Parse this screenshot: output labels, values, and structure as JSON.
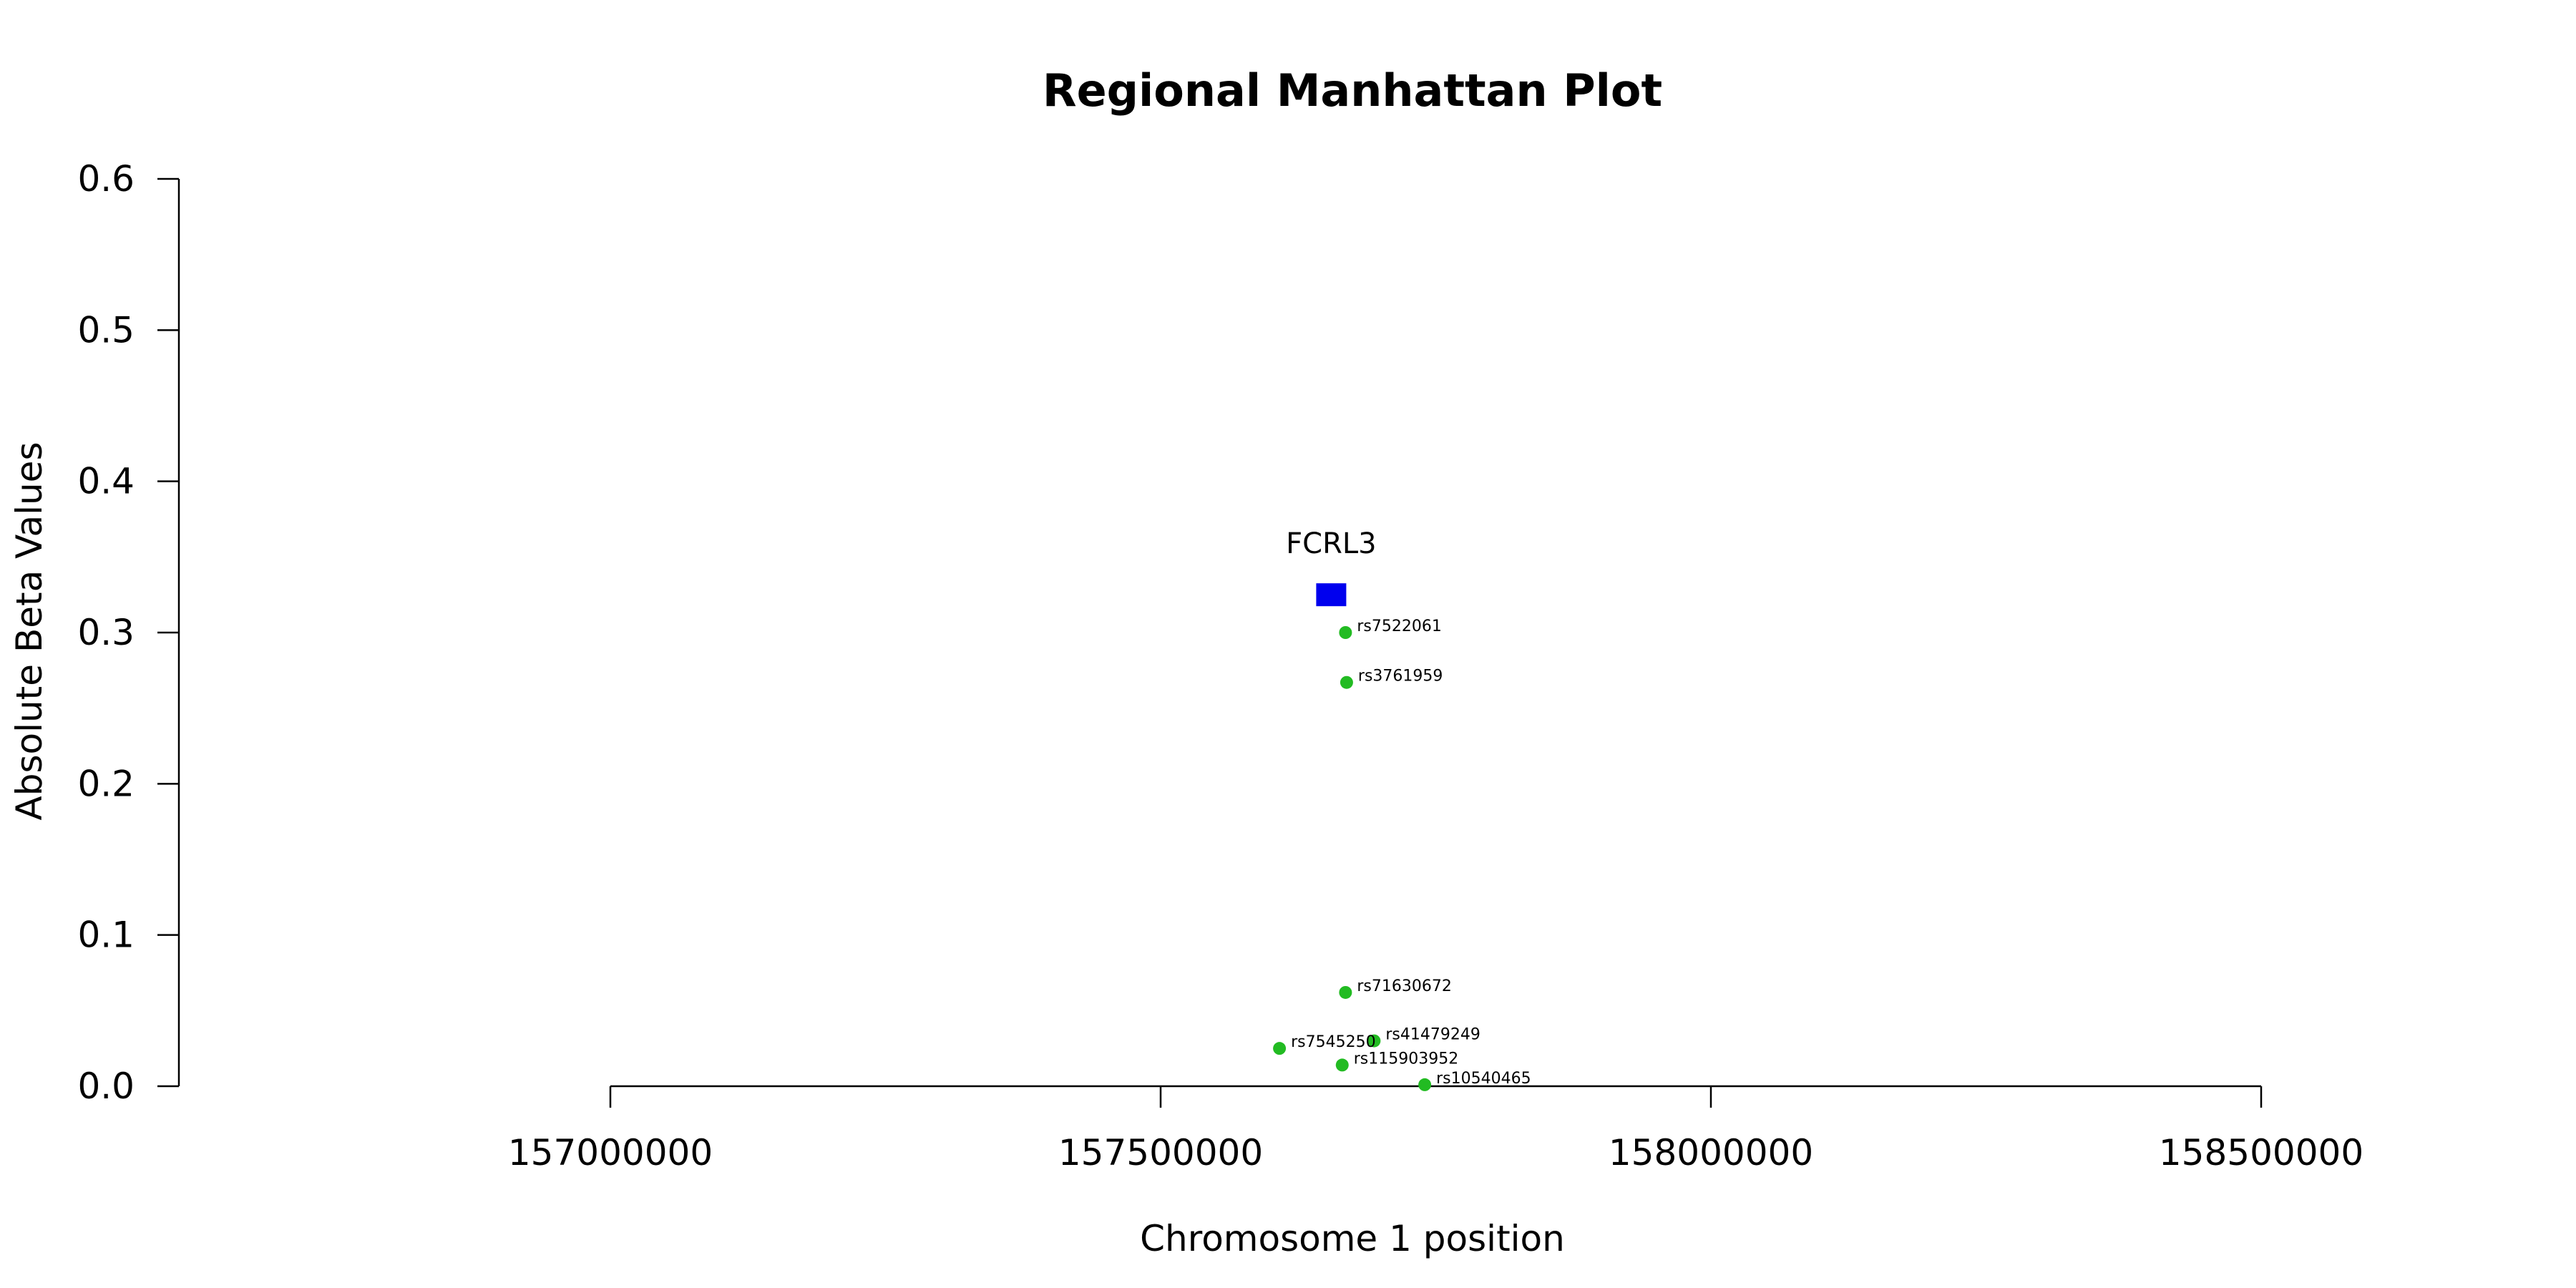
{
  "chart_data": {
    "type": "scatter",
    "title": "Regional Manhattan Plot",
    "xlabel": "Chromosome 1 position",
    "ylabel": "Absolute Beta Values",
    "xlim": [
      157000000,
      158500000
    ],
    "ylim": [
      0,
      0.6
    ],
    "x_ticks": [
      157000000,
      157500000,
      158000000,
      158500000
    ],
    "x_tick_labels": [
      "157000000",
      "157500000",
      "158000000",
      "158500000"
    ],
    "y_ticks": [
      0,
      0.1,
      0.2,
      0.3,
      0.4,
      0.5,
      0.6
    ],
    "y_tick_labels": [
      "0.0",
      "0.1",
      "0.2",
      "0.3",
      "0.4",
      "0.5",
      "0.6"
    ],
    "grid": false,
    "gene": {
      "name": "FCRL3",
      "x": 157655000,
      "y": 0.325,
      "marker": "square",
      "color": "#0000ee"
    },
    "snp_color": "#22bb22",
    "snps": [
      {
        "id": "rs7522061",
        "x": 157668000,
        "y": 0.3
      },
      {
        "id": "rs3761959",
        "x": 157669000,
        "y": 0.267
      },
      {
        "id": "rs71630672",
        "x": 157668000,
        "y": 0.062
      },
      {
        "id": "rs41479249",
        "x": 157694000,
        "y": 0.03
      },
      {
        "id": "rs7545250",
        "x": 157608000,
        "y": 0.025
      },
      {
        "id": "rs115903952",
        "x": 157665000,
        "y": 0.014
      },
      {
        "id": "rs10540465",
        "x": 157740000,
        "y": 0.001
      }
    ]
  }
}
